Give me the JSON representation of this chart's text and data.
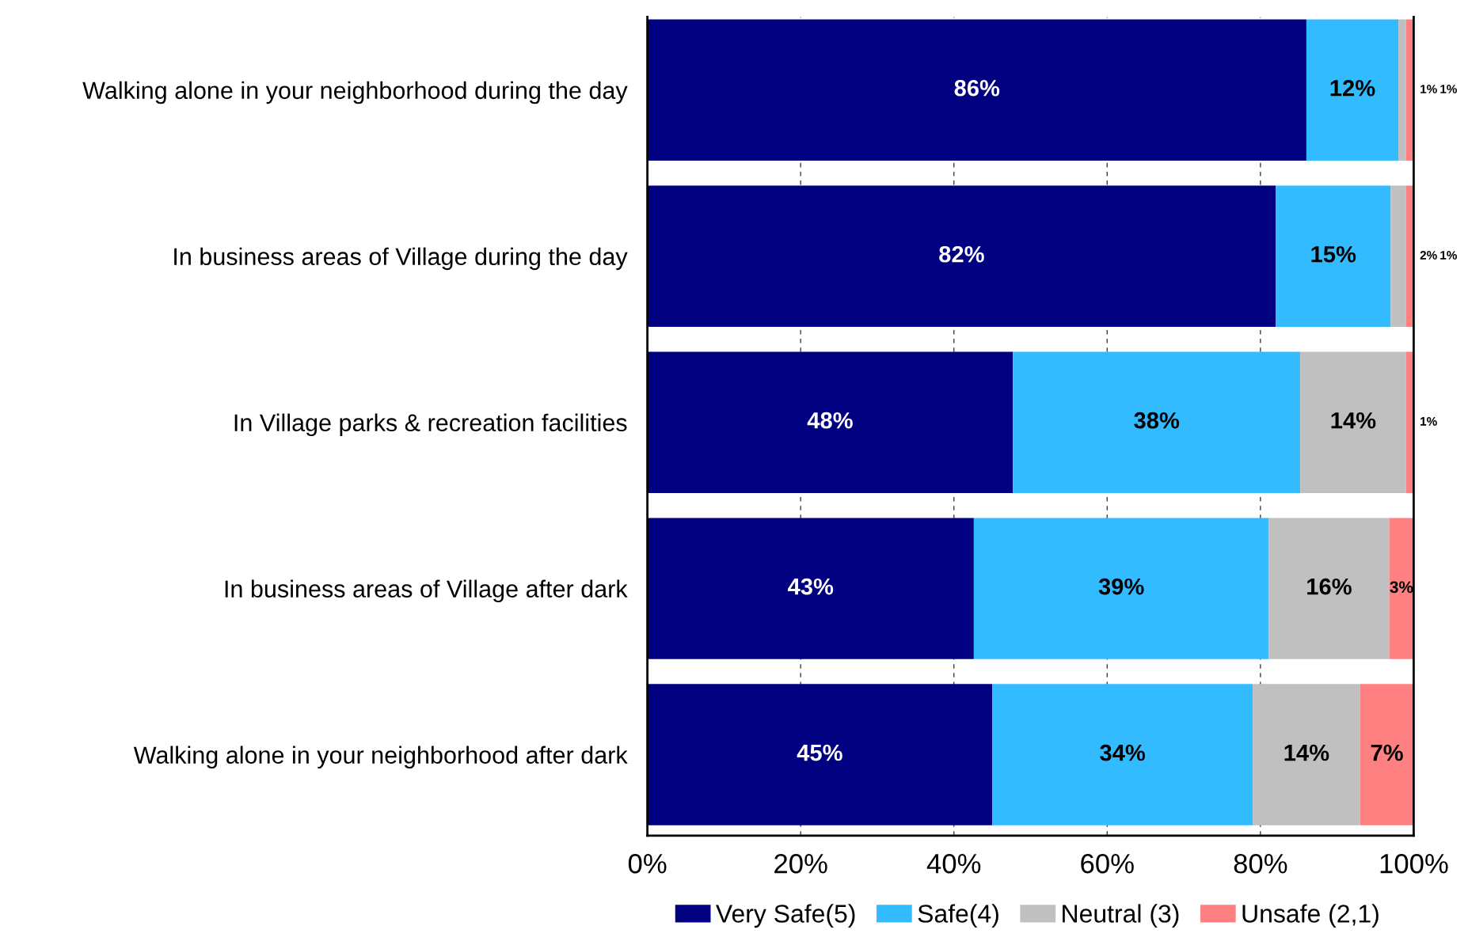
{
  "chart_data": {
    "type": "bar",
    "orientation": "horizontal",
    "stacked": true,
    "categories": [
      "Walking alone in your neighborhood during the day",
      "In business areas of Village during the day",
      "In Village parks & recreation facilities",
      "In business areas of Village after dark",
      "Walking alone in your neighborhood after dark"
    ],
    "series": [
      {
        "name": "Very Safe(5)",
        "color": "#000080",
        "values": [
          86,
          82,
          47.7,
          42.6,
          45
        ],
        "value_labels": [
          "86%",
          "82%",
          "48%",
          "43%",
          "45%"
        ]
      },
      {
        "name": "Safe(4)",
        "color": "#33bbff",
        "values": [
          12,
          15,
          37.5,
          38.5,
          34
        ],
        "value_labels": [
          "12%",
          "15%",
          "38%",
          "39%",
          "34%"
        ]
      },
      {
        "name": "Neutral (3)",
        "color": "#c0c0c0",
        "values": [
          1,
          2,
          13.8,
          15.7,
          14
        ],
        "value_labels": [
          "1%",
          "2%",
          "14%",
          "16%",
          "14%"
        ]
      },
      {
        "name": "Unsafe (2,1)",
        "color": "#ff8080",
        "values": [
          1,
          1,
          1,
          3.2,
          7
        ],
        "value_labels": [
          "1%",
          "1%",
          "1%",
          "3%",
          "7%"
        ]
      }
    ],
    "xlim": [
      0,
      100
    ],
    "xticks": [
      {
        "value": 0,
        "label": "0%"
      },
      {
        "value": 20,
        "label": "20%"
      },
      {
        "value": 40,
        "label": "40%"
      },
      {
        "value": 60,
        "label": "60%"
      },
      {
        "value": 80,
        "label": "80%"
      },
      {
        "value": 100,
        "label": "100%"
      }
    ],
    "grid": "x",
    "legend": "bottom"
  }
}
